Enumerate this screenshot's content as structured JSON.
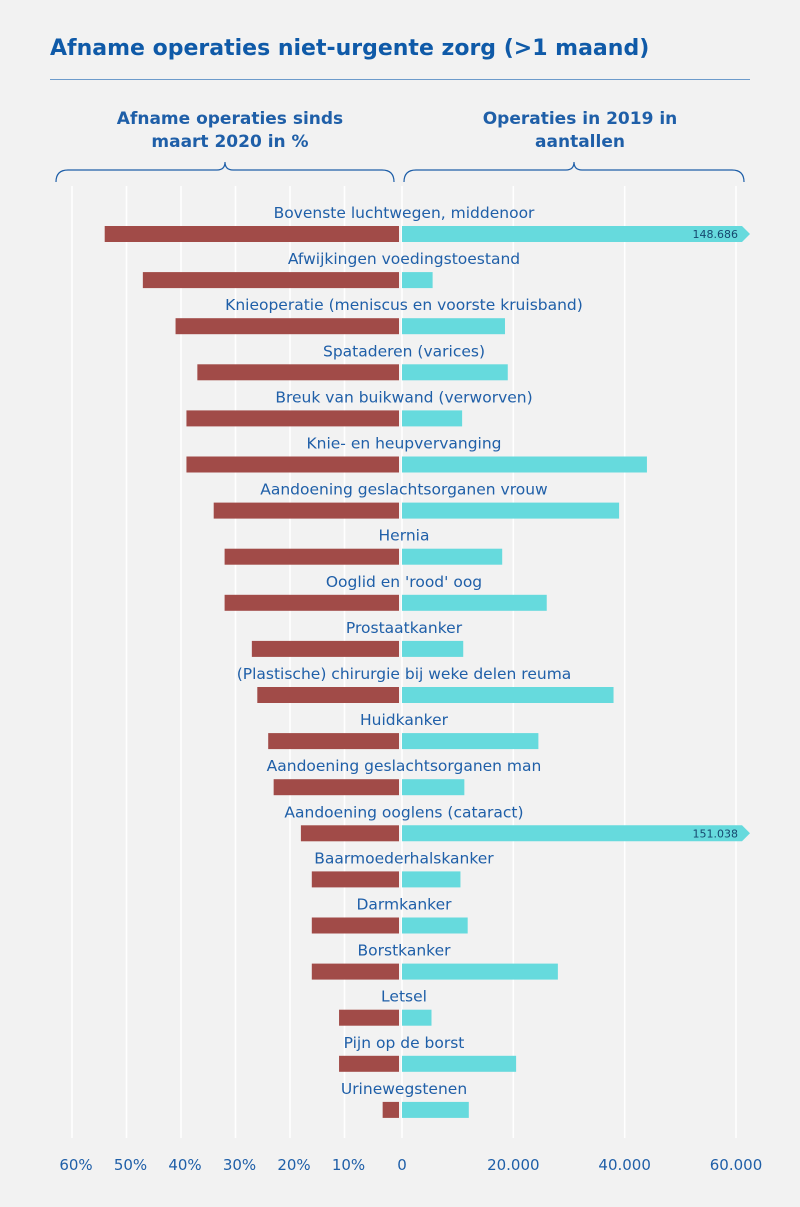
{
  "title": "Afname operaties niet-urgente zorg (>1 maand)",
  "left_heading": "Afname operaties sinds maart 2020 in %",
  "right_heading": "Operaties in 2019 in aantallen",
  "colors": {
    "decline": "#a14b48",
    "count": "#66dadd",
    "grid": "#ffffff",
    "text": "#1f5fa8"
  },
  "chart_data": {
    "type": "bar",
    "categories": [
      "Bovenste luchtwegen, middenoor",
      "Afwijkingen voedingstoestand",
      "Knieoperatie (meniscus en voorste kruisband)",
      "Spataderen (varices)",
      "Breuk van buikwand (verworven)",
      "Knie- en heupvervanging",
      "Aandoening geslachtsorganen vrouw",
      "Hernia",
      "Ooglid en 'rood' oog",
      "Prostaatkanker",
      "(Plastische) chirurgie bij weke delen reuma",
      "Huidkanker",
      "Aandoening geslachtsorganen man",
      "Aandoening ooglens (cataract)",
      "Baarmoederhalskanker",
      "Darmkanker",
      "Borstkanker",
      "Letsel",
      "Pijn op de borst",
      "Urinewegstenen"
    ],
    "series": [
      {
        "unit": "%",
        "values": [
          54,
          47,
          41,
          37,
          39,
          39,
          34,
          32,
          32,
          27,
          26,
          24,
          23,
          18,
          16,
          16,
          16,
          11,
          11,
          3
        ]
      },
      {
        "values": [
          148686,
          5500,
          18500,
          19000,
          10800,
          44000,
          39000,
          18000,
          26000,
          11000,
          38000,
          24500,
          11200,
          151038,
          10500,
          11800,
          28000,
          5300,
          20500,
          12000
        ],
        "data_labels": [
          "148.686",
          null,
          null,
          null,
          null,
          null,
          null,
          null,
          null,
          null,
          null,
          null,
          null,
          "151.038",
          null,
          null,
          null,
          null,
          null,
          null
        ]
      }
    ],
    "left_axis": {
      "ticks": [
        "60%",
        "50%",
        "40%",
        "30%",
        "20%",
        "10%"
      ],
      "range": [
        0,
        60
      ]
    },
    "right_axis": {
      "ticks": [
        "0",
        "20.000",
        "40.000",
        "60.000"
      ],
      "range": [
        0,
        60000
      ]
    },
    "grid": true
  }
}
